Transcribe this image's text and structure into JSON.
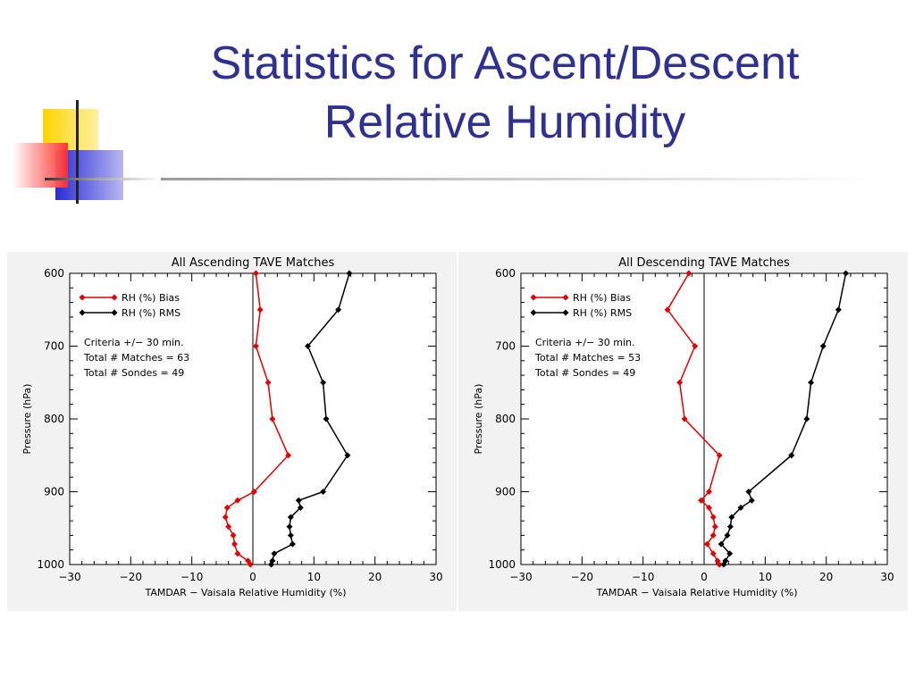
{
  "slide": {
    "title_line1": "Statistics for Ascent/Descent",
    "title_line2": "Relative Humidity",
    "accent_colors": {
      "title": "#2e3192",
      "yellow": "#ffd700",
      "red": "#ff3b3b",
      "blue": "#3333cc"
    }
  },
  "chart_data": [
    {
      "type": "line",
      "title": "All Ascending TAVE Matches",
      "xlabel": "TAMDAR − Vaisala Relative Humidity (%)",
      "ylabel": "Pressure (hPa)",
      "xlim": [
        -30,
        30
      ],
      "ylim": [
        600,
        1000
      ],
      "y_inverted": true,
      "x_ticks": [
        "−30",
        "−20",
        "−10",
        "0",
        "10",
        "20",
        "30"
      ],
      "y_ticks": [
        "600",
        "700",
        "800",
        "900",
        "1000"
      ],
      "legend": [
        {
          "label": "RH (%) Bias",
          "color": "#e00000"
        },
        {
          "label": "RH (%) RMS",
          "color": "#000000"
        }
      ],
      "annotations": [
        "Criteria +/− 30 min.",
        "Total # Matches = 63",
        "Total # Sondes = 49"
      ],
      "series": [
        {
          "name": "RH (%) Bias",
          "color": "#e00000",
          "points": [
            [
              0.5,
              600
            ],
            [
              1.2,
              650
            ],
            [
              0.5,
              700
            ],
            [
              2.5,
              750
            ],
            [
              3.2,
              800
            ],
            [
              5.8,
              850
            ],
            [
              0.2,
              900
            ],
            [
              -2.5,
              912
            ],
            [
              -4.2,
              922
            ],
            [
              -4.5,
              935
            ],
            [
              -4.0,
              948
            ],
            [
              -3.2,
              960
            ],
            [
              -3.0,
              972
            ],
            [
              -2.5,
              985
            ],
            [
              -0.8,
              995
            ],
            [
              -0.4,
              1000
            ]
          ]
        },
        {
          "name": "RH (%) RMS",
          "color": "#000000",
          "points": [
            [
              15.8,
              600
            ],
            [
              14.0,
              650
            ],
            [
              9.0,
              700
            ],
            [
              11.5,
              750
            ],
            [
              12.0,
              800
            ],
            [
              15.5,
              850
            ],
            [
              11.5,
              900
            ],
            [
              7.5,
              912
            ],
            [
              7.8,
              922
            ],
            [
              6.2,
              935
            ],
            [
              6.0,
              948
            ],
            [
              6.2,
              960
            ],
            [
              6.5,
              972
            ],
            [
              3.5,
              985
            ],
            [
              3.2,
              995
            ],
            [
              3.0,
              1000
            ]
          ]
        }
      ]
    },
    {
      "type": "line",
      "title": "All Descending TAVE Matches",
      "xlabel": "TAMDAR − Vaisala Relative Humidity (%)",
      "ylabel": "Pressure (hPa)",
      "xlim": [
        -30,
        30
      ],
      "ylim": [
        600,
        1000
      ],
      "y_inverted": true,
      "x_ticks": [
        "−30",
        "−20",
        "−10",
        "0",
        "10",
        "20",
        "30"
      ],
      "y_ticks": [
        "600",
        "700",
        "800",
        "900",
        "1000"
      ],
      "legend": [
        {
          "label": "RH (%) Bias",
          "color": "#e00000"
        },
        {
          "label": "RH (%) RMS",
          "color": "#000000"
        }
      ],
      "annotations": [
        "Criteria +/− 30 min.",
        "Total # Matches = 53",
        "Total # Sondes = 49"
      ],
      "series": [
        {
          "name": "RH (%) Bias",
          "color": "#e00000",
          "points": [
            [
              -2.5,
              600
            ],
            [
              -6.0,
              650
            ],
            [
              -1.5,
              700
            ],
            [
              -4.0,
              750
            ],
            [
              -3.2,
              800
            ],
            [
              2.5,
              850
            ],
            [
              0.8,
              900
            ],
            [
              -0.5,
              912
            ],
            [
              0.8,
              922
            ],
            [
              1.5,
              935
            ],
            [
              1.8,
              948
            ],
            [
              1.5,
              960
            ],
            [
              0.5,
              972
            ],
            [
              1.5,
              985
            ],
            [
              2.2,
              995
            ],
            [
              2.5,
              1000
            ]
          ]
        },
        {
          "name": "RH (%) RMS",
          "color": "#000000",
          "points": [
            [
              23.2,
              600
            ],
            [
              22.0,
              650
            ],
            [
              19.5,
              700
            ],
            [
              17.5,
              750
            ],
            [
              16.8,
              800
            ],
            [
              14.3,
              850
            ],
            [
              7.3,
              900
            ],
            [
              7.8,
              912
            ],
            [
              6.0,
              922
            ],
            [
              4.5,
              935
            ],
            [
              4.3,
              948
            ],
            [
              3.8,
              960
            ],
            [
              2.8,
              972
            ],
            [
              4.2,
              985
            ],
            [
              3.5,
              995
            ],
            [
              3.2,
              1000
            ]
          ]
        }
      ]
    }
  ]
}
